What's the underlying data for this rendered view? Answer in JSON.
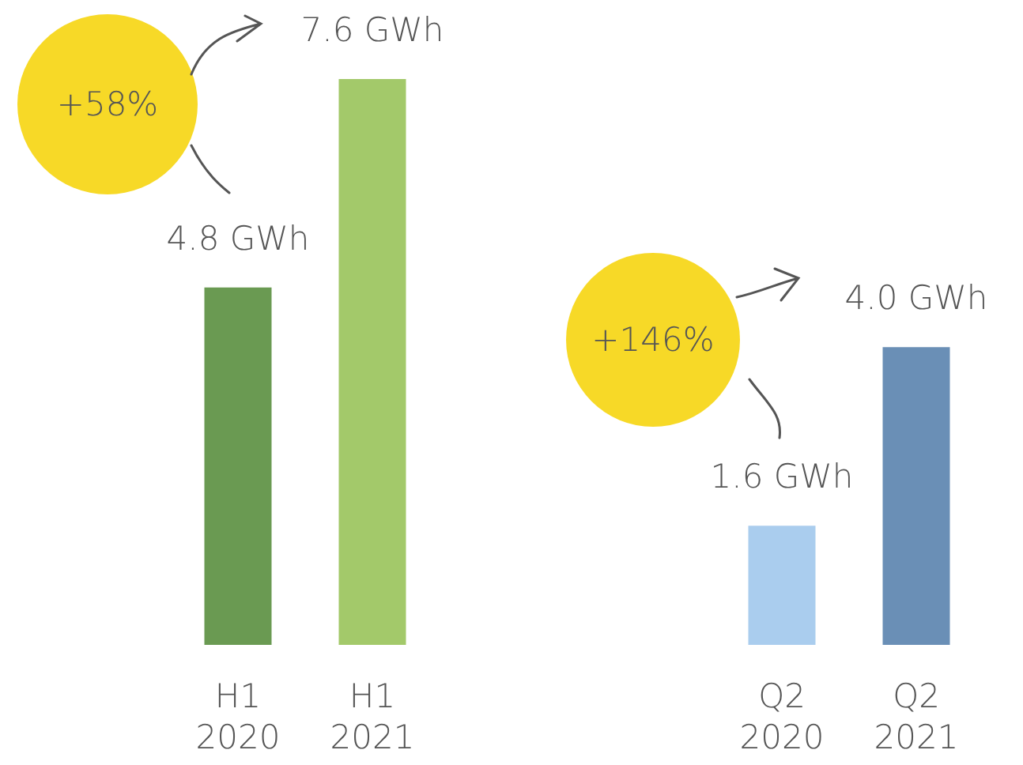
{
  "chart_data": [
    {
      "type": "bar",
      "categories": [
        "H1 2020",
        "H1 2021"
      ],
      "values": [
        4.8,
        7.6
      ],
      "colors": [
        "#6a9a52",
        "#a3c96a"
      ],
      "value_labels": [
        "4.8 GWh",
        "7.6 GWh"
      ],
      "annotations": [
        "+58%"
      ]
    },
    {
      "type": "bar",
      "categories": [
        "Q2 2020",
        "Q2 2021"
      ],
      "values": [
        1.6,
        4.0
      ],
      "colors": [
        "#aacdee",
        "#6a8fb6"
      ],
      "value_labels": [
        "1.6 GWh",
        "4.0 GWh"
      ],
      "annotations": [
        "+146%"
      ]
    }
  ]
}
